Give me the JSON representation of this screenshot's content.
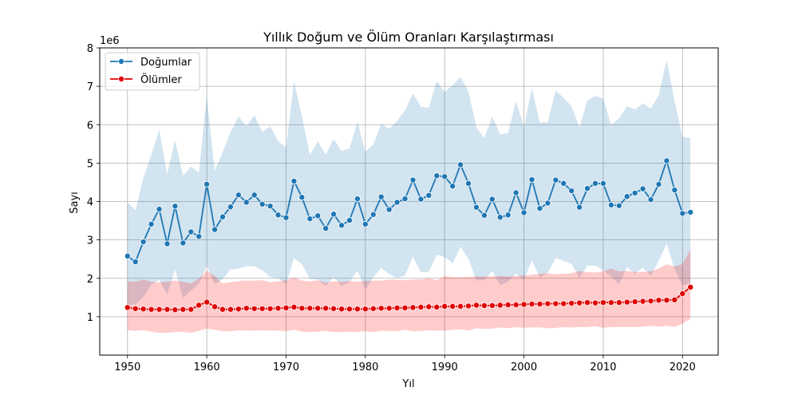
{
  "chart_data": {
    "type": "line",
    "title": "Yıllık Doğum ve Ölüm Oranları Karşılaştırması",
    "xlabel": "Yıl",
    "ylabel": "Sayı",
    "y_multiplier_label": "1e6",
    "xlim": [
      1946.5,
      2024.5
    ],
    "ylim": [
      0,
      8
    ],
    "x_ticks": [
      1950,
      1960,
      1970,
      1980,
      1990,
      2000,
      2010,
      2020
    ],
    "y_ticks": [
      1,
      2,
      3,
      4,
      5,
      6,
      7,
      8
    ],
    "grid": true,
    "legend_position": "top-left",
    "x": [
      1950,
      1951,
      1952,
      1953,
      1954,
      1955,
      1956,
      1957,
      1958,
      1959,
      1960,
      1961,
      1962,
      1963,
      1964,
      1965,
      1966,
      1967,
      1968,
      1969,
      1970,
      1971,
      1972,
      1973,
      1974,
      1975,
      1976,
      1977,
      1978,
      1979,
      1980,
      1981,
      1982,
      1983,
      1984,
      1985,
      1986,
      1987,
      1988,
      1989,
      1990,
      1991,
      1992,
      1993,
      1994,
      1995,
      1996,
      1997,
      1998,
      1999,
      2000,
      2001,
      2002,
      2003,
      2004,
      2005,
      2006,
      2007,
      2008,
      2009,
      2010,
      2011,
      2012,
      2013,
      2014,
      2015,
      2016,
      2017,
      2018,
      2019,
      2020,
      2021
    ],
    "series": [
      {
        "name": "Doğumlar",
        "color": "#1f77b4",
        "band_color": "#1f77b4",
        "values": [
          2.58,
          2.43,
          2.95,
          3.41,
          3.8,
          2.9,
          3.88,
          2.92,
          3.21,
          3.09,
          4.45,
          3.27,
          3.6,
          3.86,
          4.17,
          3.98,
          4.17,
          3.93,
          3.88,
          3.65,
          3.58,
          4.53,
          4.11,
          3.55,
          3.63,
          3.3,
          3.67,
          3.38,
          3.51,
          4.07,
          3.41,
          3.66,
          4.12,
          3.79,
          3.98,
          4.07,
          4.56,
          4.06,
          4.16,
          4.67,
          4.65,
          4.4,
          4.96,
          4.47,
          3.85,
          3.64,
          4.06,
          3.59,
          3.65,
          4.23,
          3.71,
          4.57,
          3.82,
          3.96,
          4.56,
          4.47,
          4.28,
          3.85,
          4.34,
          4.47,
          4.47,
          3.91,
          3.89,
          4.13,
          4.22,
          4.33,
          4.05,
          4.45,
          5.06,
          4.3,
          3.69,
          3.72
        ],
        "upper": [
          3.98,
          3.77,
          4.61,
          5.21,
          5.86,
          4.71,
          5.6,
          4.67,
          4.91,
          4.75,
          6.74,
          4.8,
          5.28,
          5.81,
          6.21,
          5.96,
          6.25,
          5.81,
          5.96,
          5.57,
          5.41,
          7.13,
          6.22,
          5.21,
          5.57,
          5.22,
          5.63,
          5.32,
          5.38,
          6.08,
          5.3,
          5.48,
          6.02,
          5.89,
          6.1,
          6.37,
          6.81,
          6.47,
          6.44,
          7.14,
          6.85,
          7.03,
          7.24,
          6.87,
          5.93,
          5.65,
          6.21,
          5.75,
          5.78,
          6.61,
          5.94,
          6.95,
          6.06,
          6.06,
          6.89,
          6.7,
          6.48,
          5.93,
          6.63,
          6.75,
          6.68,
          6.0,
          6.17,
          6.48,
          6.4,
          6.55,
          6.42,
          6.77,
          7.69,
          6.62,
          5.68,
          5.65
        ],
        "lower": [
          1.3,
          1.32,
          1.51,
          1.83,
          1.97,
          1.58,
          2.23,
          1.49,
          1.68,
          1.85,
          2.33,
          1.85,
          1.98,
          2.23,
          2.25,
          2.32,
          2.31,
          2.21,
          2.03,
          2.0,
          1.85,
          2.52,
          2.37,
          1.98,
          1.97,
          1.8,
          2.03,
          1.8,
          1.91,
          2.2,
          1.71,
          2.02,
          2.27,
          2.11,
          2.01,
          2.07,
          2.56,
          2.16,
          2.17,
          2.61,
          2.55,
          2.39,
          2.82,
          2.51,
          1.94,
          1.96,
          2.19,
          1.82,
          1.92,
          2.12,
          1.95,
          2.47,
          2.02,
          2.14,
          2.53,
          2.45,
          2.38,
          2.01,
          2.33,
          2.33,
          2.21,
          2.04,
          1.85,
          2.29,
          2.12,
          2.28,
          2.06,
          2.46,
          2.9,
          2.24,
          1.82,
          1.87
        ]
      },
      {
        "name": "Ölümler",
        "color": "#e00000",
        "band_color": "#ff0000",
        "values": [
          1.24,
          1.21,
          1.2,
          1.19,
          1.19,
          1.19,
          1.18,
          1.19,
          1.19,
          1.3,
          1.38,
          1.26,
          1.19,
          1.19,
          1.2,
          1.22,
          1.21,
          1.21,
          1.21,
          1.22,
          1.23,
          1.25,
          1.22,
          1.22,
          1.22,
          1.22,
          1.21,
          1.2,
          1.2,
          1.2,
          1.2,
          1.21,
          1.22,
          1.22,
          1.23,
          1.23,
          1.24,
          1.25,
          1.26,
          1.25,
          1.27,
          1.27,
          1.27,
          1.28,
          1.3,
          1.29,
          1.29,
          1.3,
          1.31,
          1.31,
          1.32,
          1.33,
          1.33,
          1.34,
          1.34,
          1.34,
          1.35,
          1.36,
          1.37,
          1.36,
          1.37,
          1.37,
          1.37,
          1.38,
          1.39,
          1.4,
          1.41,
          1.43,
          1.43,
          1.44,
          1.6,
          1.77
        ],
        "upper": [
          1.92,
          1.91,
          1.97,
          1.91,
          1.9,
          1.91,
          1.94,
          1.91,
          1.87,
          1.99,
          2.2,
          2.06,
          1.87,
          1.9,
          1.93,
          1.94,
          1.94,
          1.95,
          1.9,
          1.92,
          1.95,
          2.02,
          1.94,
          1.92,
          1.95,
          1.89,
          1.92,
          1.91,
          1.93,
          1.91,
          1.93,
          1.94,
          1.94,
          1.96,
          1.96,
          1.95,
          1.97,
          1.97,
          2.0,
          1.95,
          2.06,
          2.03,
          2.03,
          2.04,
          2.05,
          2.05,
          2.05,
          2.06,
          2.05,
          2.06,
          2.07,
          2.09,
          2.12,
          2.13,
          2.11,
          2.12,
          2.13,
          2.19,
          2.16,
          2.15,
          2.18,
          2.25,
          2.18,
          2.19,
          2.16,
          2.17,
          2.18,
          2.26,
          2.36,
          2.31,
          2.37,
          2.75
        ],
        "lower": [
          0.65,
          0.63,
          0.65,
          0.61,
          0.58,
          0.58,
          0.6,
          0.61,
          0.58,
          0.63,
          0.69,
          0.66,
          0.62,
          0.62,
          0.64,
          0.64,
          0.63,
          0.65,
          0.63,
          0.64,
          0.62,
          0.66,
          0.61,
          0.6,
          0.61,
          0.63,
          0.6,
          0.6,
          0.61,
          0.6,
          0.62,
          0.6,
          0.63,
          0.63,
          0.62,
          0.66,
          0.62,
          0.63,
          0.65,
          0.63,
          0.64,
          0.66,
          0.67,
          0.64,
          0.7,
          0.68,
          0.69,
          0.72,
          0.7,
          0.73,
          0.71,
          0.72,
          0.72,
          0.7,
          0.71,
          0.73,
          0.72,
          0.73,
          0.73,
          0.75,
          0.71,
          0.73,
          0.73,
          0.73,
          0.73,
          0.74,
          0.76,
          0.74,
          0.76,
          0.73,
          0.82,
          0.95
        ]
      }
    ]
  }
}
